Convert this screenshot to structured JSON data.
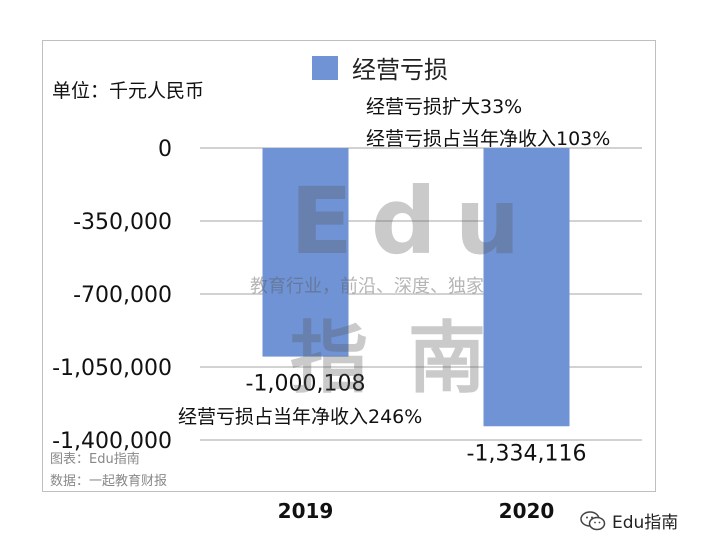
{
  "chart_data": {
    "type": "bar",
    "categories": [
      "2019",
      "2020"
    ],
    "series": [
      {
        "name": "经营亏损",
        "values": [
          -1000108,
          -1334116
        ]
      }
    ],
    "data_labels": [
      "-1,000,108",
      "-1,334,116"
    ],
    "ylim": [
      -1400000,
      0
    ],
    "yticks": [
      0,
      -350000,
      -700000,
      -1050000,
      -1400000
    ],
    "ytick_labels": [
      "0",
      "-350,000",
      "-700,000",
      "-1,050,000",
      "-1,400,000"
    ],
    "unit_label": "单位：千元人民币",
    "legend_position": "top-center",
    "grid": true,
    "bar_color": "#6f93d4"
  },
  "annotations": {
    "a2020_1": "经营亏损扩大33%",
    "a2020_2": "经营亏损占当年净收入103%",
    "a2019": "经营亏损占当年净收入246%"
  },
  "source": {
    "chart_credit": "图表：Edu指南",
    "data_credit": "数据：一起教育财报"
  },
  "watermark": {
    "big_top": "Edu",
    "tagline": "教育行业，前沿、深度、独家",
    "big_bottom": "指南"
  },
  "logo": {
    "text": "Edu指南",
    "icon": "wechat-icon"
  }
}
